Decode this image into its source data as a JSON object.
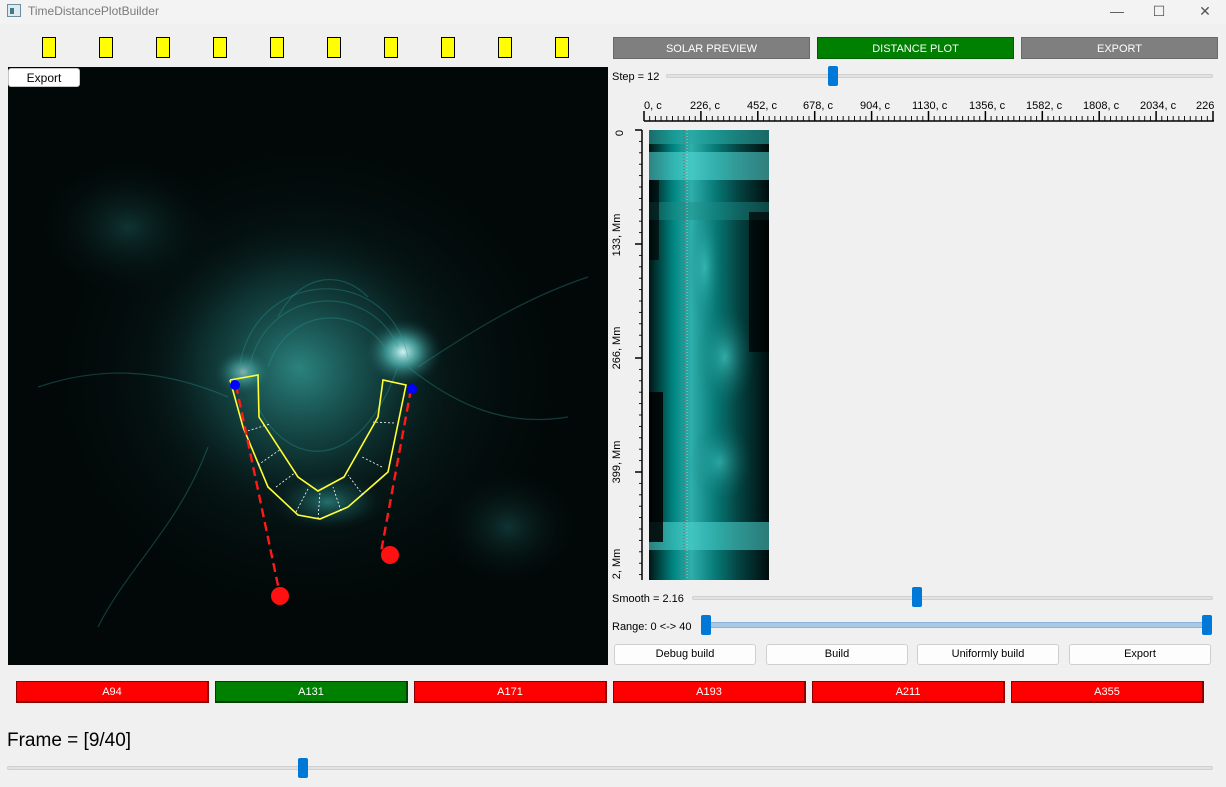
{
  "window": {
    "title": "TimeDistancePlotBuilder"
  },
  "solar_view": {
    "export_label": "Export"
  },
  "tabs": [
    {
      "label": "SOLAR PREVIEW",
      "active": false
    },
    {
      "label": "DISTANCE PLOT",
      "active": true
    },
    {
      "label": "EXPORT",
      "active": false
    }
  ],
  "step": {
    "label": "Step = 12",
    "value": 12
  },
  "plot": {
    "x_ticks": [
      "0, c",
      "226, c",
      "452, c",
      "678, c",
      "904, c",
      "1130, c",
      "1356, c",
      "1582, c",
      "1808, c",
      "2034, c",
      "226"
    ],
    "y_ticks": [
      "0",
      "133, Mm",
      "266, Mm",
      "399, Mm",
      "2, Mm"
    ]
  },
  "smooth": {
    "label": "Smooth = 2.16",
    "value": 2.16
  },
  "range": {
    "label": "Range: 0 <-> 40",
    "min": 0,
    "max": 40
  },
  "build_buttons": {
    "debug": "Debug build",
    "build": "Build",
    "uniform": "Uniformly build",
    "export": "Export"
  },
  "channels": [
    {
      "label": "A94",
      "active": false
    },
    {
      "label": "A131",
      "active": true
    },
    {
      "label": "A171",
      "active": false
    },
    {
      "label": "A193",
      "active": false
    },
    {
      "label": "A211",
      "active": false
    },
    {
      "label": "A355",
      "active": false
    }
  ],
  "frame": {
    "label": "Frame = [9/40]",
    "current": 9,
    "total": 40
  },
  "colors": {
    "active": "#008000",
    "inactive_channel": "#ff0000",
    "tab_inactive": "#7f7f7f",
    "slider": "#0078d7",
    "marker": "#ffff00"
  }
}
